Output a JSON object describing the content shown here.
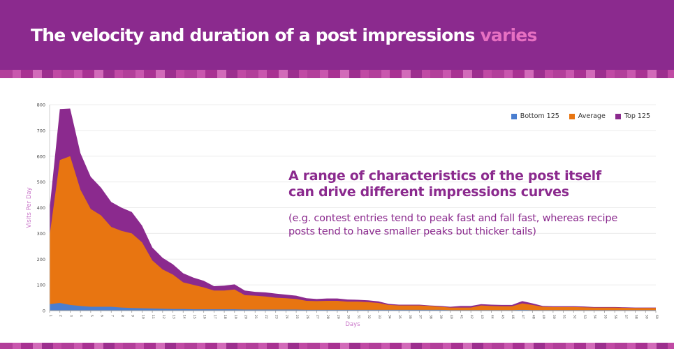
{
  "header": {
    "title": "The velocity and duration of a post impressions",
    "title_accent": "varies"
  },
  "callout": {
    "title": "A range of characteristics of the post itself can drive different impressions curves",
    "note": "(e.g. contest entries tend to peak fast and fall fast, whereas recipe posts tend to have smaller peaks but thicker tails)"
  },
  "colors": {
    "brand_purple": "#8b2a8e",
    "accent_pink": "#e770c2",
    "bottom_125": "#4a7ed0",
    "average": "#e87511",
    "top_125": "#8b2a8e",
    "axis_label": "#c976c9"
  },
  "legend": {
    "placement": "top-right",
    "items": [
      {
        "label": "Bottom 125",
        "color": "#4a7ed0"
      },
      {
        "label": "Average",
        "color": "#e87511"
      },
      {
        "label": "Top 125",
        "color": "#8b2a8e"
      }
    ]
  },
  "chart_data": {
    "type": "area",
    "xlabel": "Days",
    "ylabel": "Visits Per Day",
    "ylim": [
      0,
      800
    ],
    "yticks": [
      0,
      100,
      200,
      300,
      400,
      500,
      600,
      700,
      800
    ],
    "grid": true,
    "x": [
      1,
      2,
      3,
      4,
      5,
      6,
      7,
      8,
      9,
      10,
      11,
      12,
      13,
      14,
      15,
      16,
      17,
      18,
      19,
      20,
      21,
      22,
      23,
      24,
      25,
      26,
      27,
      28,
      29,
      30,
      31,
      32,
      33,
      34,
      35,
      36,
      37,
      38,
      39,
      40,
      41,
      42,
      43,
      44,
      45,
      46,
      47,
      48,
      49,
      50,
      51,
      52,
      53,
      54,
      55,
      56,
      57,
      58,
      59,
      60
    ],
    "series": [
      {
        "name": "Bottom 125",
        "values": [
          25,
          30,
          22,
          18,
          15,
          15,
          15,
          12,
          10,
          9,
          8,
          7,
          6,
          6,
          5,
          5,
          5,
          5,
          5,
          4,
          4,
          4,
          4,
          4,
          4,
          3,
          3,
          3,
          3,
          3,
          3,
          3,
          3,
          3,
          3,
          3,
          3,
          3,
          3,
          2,
          2,
          2,
          2,
          2,
          2,
          2,
          3,
          2,
          2,
          2,
          2,
          2,
          2,
          2,
          2,
          2,
          2,
          2,
          2,
          2
        ]
      },
      {
        "name": "Average",
        "values": [
          290,
          585,
          600,
          470,
          395,
          370,
          325,
          310,
          300,
          265,
          195,
          160,
          140,
          110,
          100,
          90,
          78,
          78,
          82,
          60,
          58,
          55,
          50,
          48,
          45,
          38,
          37,
          38,
          38,
          35,
          35,
          33,
          30,
          22,
          20,
          20,
          20,
          18,
          15,
          12,
          12,
          12,
          20,
          18,
          17,
          17,
          28,
          22,
          15,
          14,
          14,
          14,
          13,
          12,
          12,
          12,
          11,
          10,
          10,
          10
        ]
      },
      {
        "name": "Top 125",
        "values": [
          395,
          783,
          785,
          612,
          520,
          478,
          422,
          400,
          383,
          330,
          245,
          205,
          180,
          145,
          128,
          116,
          95,
          97,
          102,
          78,
          73,
          71,
          66,
          62,
          58,
          48,
          45,
          47,
          47,
          43,
          42,
          40,
          36,
          26,
          23,
          23,
          23,
          20,
          18,
          15,
          18,
          18,
          25,
          23,
          22,
          22,
          37,
          28,
          18,
          17,
          17,
          17,
          16,
          14,
          14,
          14,
          13,
          12,
          12,
          12
        ]
      }
    ]
  }
}
